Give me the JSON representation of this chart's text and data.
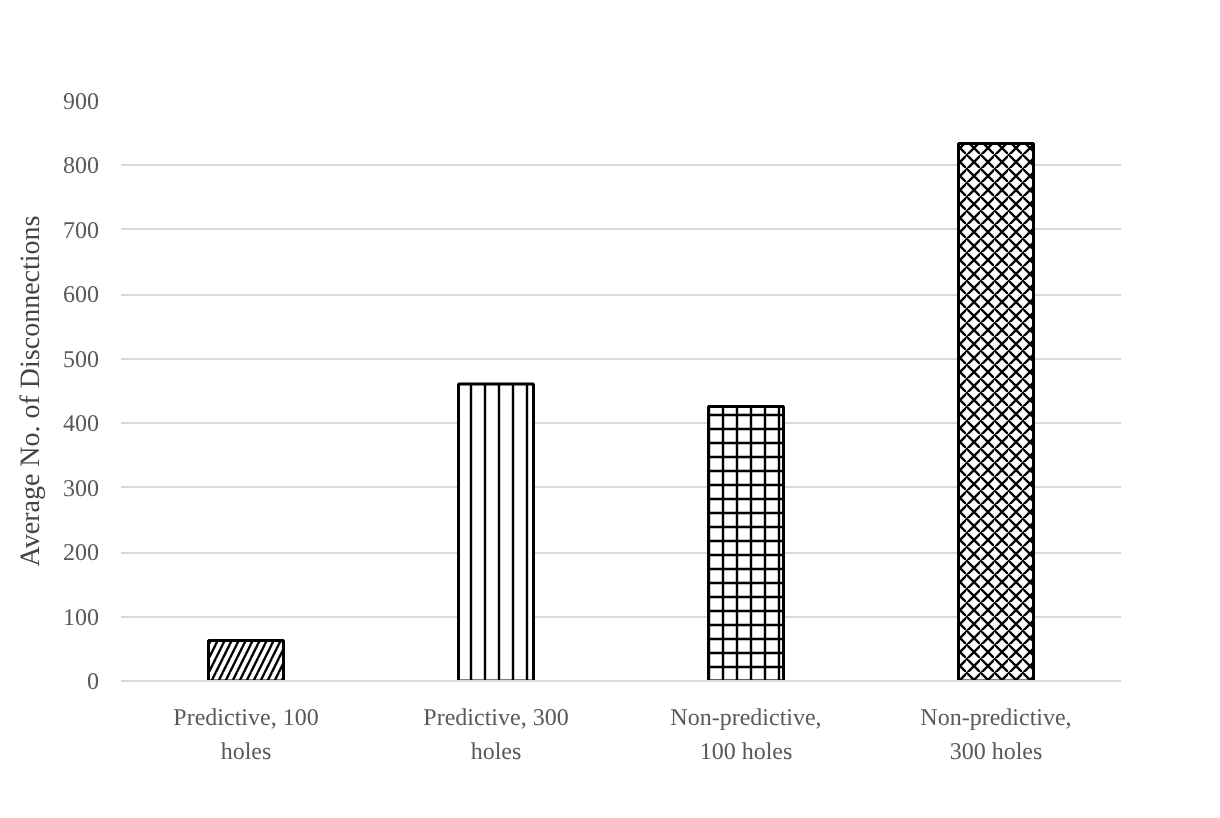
{
  "chart_data": {
    "type": "bar",
    "ylabel": "Average No. of Disconnections",
    "categories": [
      "Predictive, 100 holes",
      "Predictive, 300 holes",
      "Non-predictive, 100 holes",
      "Non-predictive, 300 holes"
    ],
    "values": [
      63,
      461,
      426,
      834
    ],
    "color": "#000000",
    "ylim": [
      0,
      900
    ],
    "yticks": [
      0,
      100,
      200,
      300,
      400,
      500,
      600,
      700,
      800,
      900
    ],
    "grid": "y"
  }
}
